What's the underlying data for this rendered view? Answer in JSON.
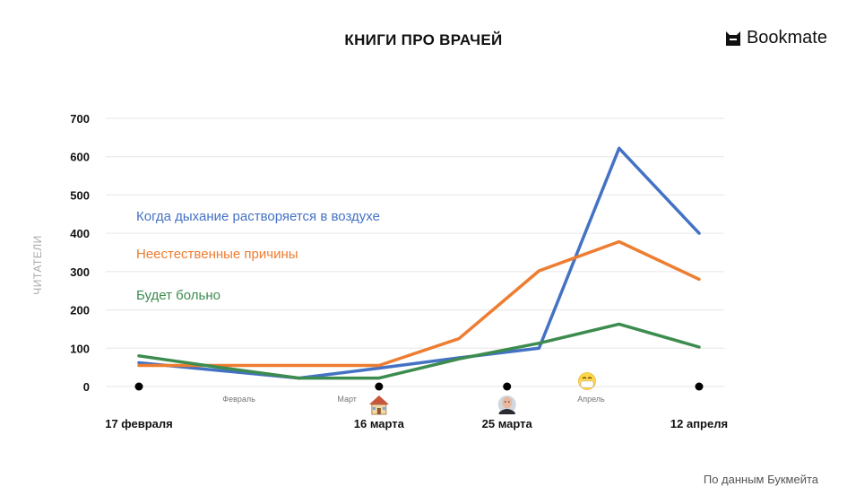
{
  "header": {
    "title": "КНИГИ ПРО ВРАЧЕЙ",
    "brand": "Bookmate"
  },
  "footer": {
    "source": "По данным Букмейта"
  },
  "colors": {
    "blue": "#4472c4",
    "orange": "#ed7d31",
    "green": "#3d8c4f"
  },
  "chart_data": {
    "type": "line",
    "title": "КНИГИ ПРО ВРАЧЕЙ",
    "ylabel": "ЧИТАТЕЛИ",
    "ylim": [
      0,
      700
    ],
    "yticks": [
      0,
      100,
      200,
      300,
      400,
      500,
      600,
      700
    ],
    "grid": true,
    "x": [
      0,
      1,
      2,
      3,
      4,
      5,
      6,
      7
    ],
    "xlim": [
      0,
      7
    ],
    "date_labels": [
      {
        "x": 0,
        "label": "17 февраля"
      },
      {
        "x": 3,
        "label": "16 марта"
      },
      {
        "x": 4.6,
        "label": "25 марта"
      },
      {
        "x": 7,
        "label": "12 апреля"
      }
    ],
    "month_labels": [
      {
        "x": 1.25,
        "label": "Февраль"
      },
      {
        "x": 2.6,
        "label": "Март"
      },
      {
        "x": 5.65,
        "label": "Апрель"
      }
    ],
    "event_icons": [
      {
        "x": 3,
        "icon": "house-icon"
      },
      {
        "x": 4.6,
        "icon": "putin-portrait-icon"
      },
      {
        "x": 5.6,
        "icon": "face-with-mask-icon"
      }
    ],
    "legend_position": "left",
    "series": [
      {
        "name": "Когда дыхание растворяется в воздухе",
        "color": "#4472c4",
        "values": [
          62,
          42,
          22,
          48,
          75,
          100,
          622,
          400
        ]
      },
      {
        "name": "Неестественные причины",
        "color": "#ed7d31",
        "values": [
          55,
          55,
          55,
          55,
          125,
          302,
          378,
          280
        ]
      },
      {
        "name": "Будет больно",
        "color": "#3d8c4f",
        "values": [
          80,
          50,
          22,
          22,
          72,
          113,
          163,
          103
        ]
      }
    ]
  }
}
